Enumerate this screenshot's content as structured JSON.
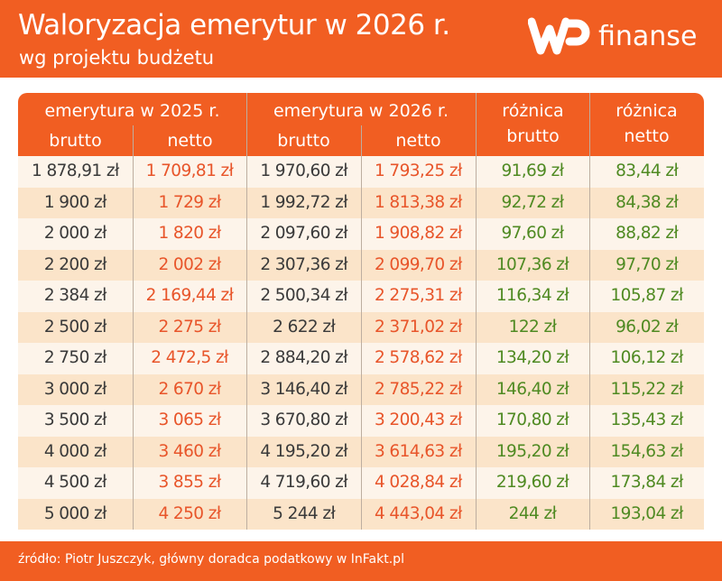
{
  "header": {
    "title": "Waloryzacja emerytur w 2026 r.",
    "subtitle": "wg projektu budżetu",
    "logo_text": "finanse",
    "logo_mark": "WP"
  },
  "colors": {
    "brand_orange": "#f15e22",
    "netto_red": "#e8552a",
    "diff_green": "#4f8a22",
    "row_light": "#fdf4ea",
    "row_dark": "#fbe4c9"
  },
  "chart_data": {
    "type": "table",
    "group_headers": [
      "emerytura w 2025 r.",
      "emerytura w 2026 r.",
      "różnica",
      "różnica"
    ],
    "columns": [
      "brutto",
      "netto",
      "brutto",
      "netto",
      "brutto",
      "netto"
    ],
    "rows": [
      [
        "1 878,91 zł",
        "1 709,81 zł",
        "1 970,60 zł",
        "1 793,25 zł",
        "91,69 zł",
        "83,44 zł"
      ],
      [
        "1 900 zł",
        "1 729 zł",
        "1 992,72 zł",
        "1 813,38 zł",
        "92,72 zł",
        "84,38 zł"
      ],
      [
        "2 000 zł",
        "1 820 zł",
        "2 097,60 zł",
        "1 908,82 zł",
        "97,60 zł",
        "88,82 zł"
      ],
      [
        "2 200 zł",
        "2 002 zł",
        "2 307,36 zł",
        "2 099,70 zł",
        "107,36 zł",
        "97,70 zł"
      ],
      [
        "2 384 zł",
        "2 169,44 zł",
        "2 500,34 zł",
        "2 275,31 zł",
        "116,34 zł",
        "105,87 zł"
      ],
      [
        "2 500 zł",
        "2 275 zł",
        "2 622 zł",
        "2 371,02 zł",
        "122 zł",
        "96,02 zł"
      ],
      [
        "2 750 zł",
        "2 472,5 zł",
        "2 884,20 zł",
        "2 578,62 zł",
        "134,20 zł",
        "106,12 zł"
      ],
      [
        "3 000 zł",
        "2 670 zł",
        "3 146,40 zł",
        "2 785,22 zł",
        "146,40 zł",
        "115,22 zł"
      ],
      [
        "3 500 zł",
        "3 065 zł",
        "3 670,80 zł",
        "3 200,43 zł",
        "170,80 zł",
        "135,43 zł"
      ],
      [
        "4 000 zł",
        "3 460 zł",
        "4 195,20 zł",
        "3 614,63 zł",
        "195,20 zł",
        "154,63 zł"
      ],
      [
        "4 500 zł",
        "3 855 zł",
        "4 719,60 zł",
        "4 028,84 zł",
        "219,60 zł",
        "173,84 zł"
      ],
      [
        "5 000 zł",
        "4 250 zł",
        "5 244 zł",
        "4 443,04 zł",
        "244 zł",
        "193,04 zł"
      ]
    ]
  },
  "footer": {
    "source": "źródło: Piotr Juszczyk, główny doradca podatkowy w InFakt.pl"
  }
}
